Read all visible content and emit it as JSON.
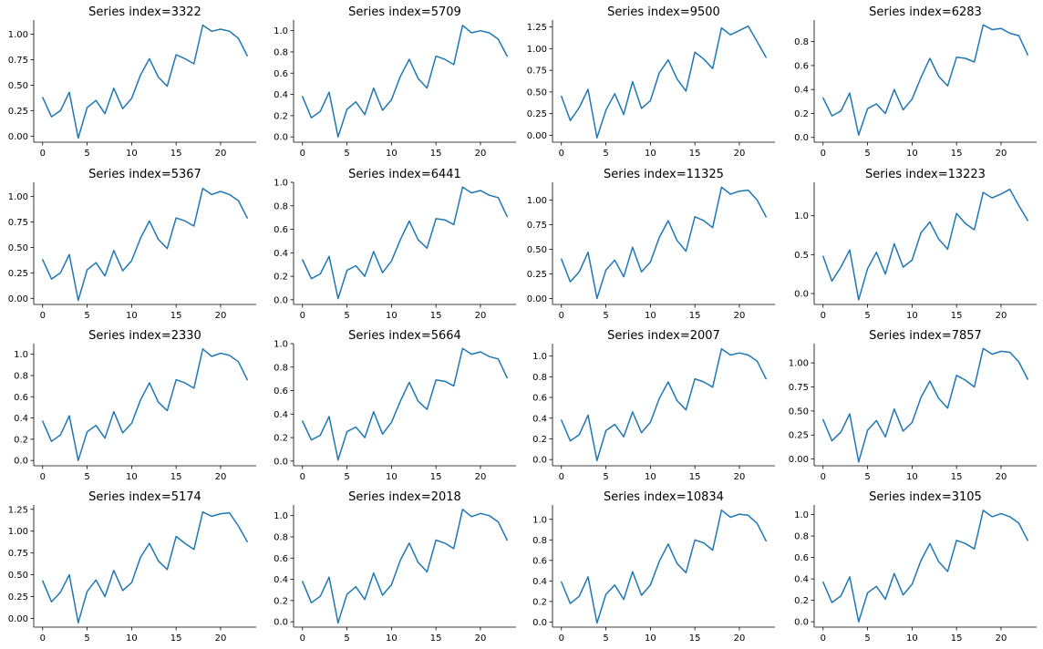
{
  "line_color": "#1f77b4",
  "chart_data": [
    {
      "type": "line",
      "title": "Series index=3322",
      "xlim": [
        -1,
        24
      ],
      "ylim": [
        -0.06,
        1.14
      ],
      "xticks": [
        0,
        5,
        10,
        15,
        20
      ],
      "yticks": [
        0,
        0.25,
        0.5,
        0.75,
        1.0
      ],
      "ytick_labels": [
        "0.00",
        "0.25",
        "0.50",
        "0.75",
        "1.00"
      ],
      "x": [
        0,
        1,
        2,
        3,
        4,
        5,
        6,
        7,
        8,
        9,
        10,
        11,
        12,
        13,
        14,
        15,
        16,
        17,
        18,
        19,
        20,
        21,
        22,
        23
      ],
      "values": [
        0.38,
        0.19,
        0.25,
        0.43,
        -0.02,
        0.28,
        0.35,
        0.22,
        0.47,
        0.27,
        0.37,
        0.6,
        0.76,
        0.58,
        0.49,
        0.8,
        0.76,
        0.71,
        1.09,
        1.03,
        1.05,
        1.03,
        0.96,
        0.79
      ]
    },
    {
      "type": "line",
      "title": "Series index=5709",
      "xlim": [
        -1,
        24
      ],
      "ylim": [
        -0.05,
        1.1
      ],
      "xticks": [
        0,
        5,
        10,
        15,
        20
      ],
      "yticks": [
        0,
        0.2,
        0.4,
        0.6,
        0.8,
        1.0
      ],
      "ytick_labels": [
        "0.0",
        "0.2",
        "0.4",
        "0.6",
        "0.8",
        "1.0"
      ],
      "x": [
        0,
        1,
        2,
        3,
        4,
        5,
        6,
        7,
        8,
        9,
        10,
        11,
        12,
        13,
        14,
        15,
        16,
        17,
        18,
        19,
        20,
        21,
        22,
        23
      ],
      "values": [
        0.38,
        0.18,
        0.24,
        0.42,
        0.0,
        0.26,
        0.33,
        0.21,
        0.46,
        0.25,
        0.35,
        0.57,
        0.73,
        0.55,
        0.46,
        0.76,
        0.73,
        0.68,
        1.05,
        0.98,
        1.0,
        0.98,
        0.92,
        0.76
      ]
    },
    {
      "type": "line",
      "title": "Series index=9500",
      "xlim": [
        -1,
        24
      ],
      "ylim": [
        -0.08,
        1.33
      ],
      "xticks": [
        0,
        5,
        10,
        15,
        20
      ],
      "yticks": [
        0,
        0.25,
        0.5,
        0.75,
        1.0,
        1.25
      ],
      "ytick_labels": [
        "0.00",
        "0.25",
        "0.50",
        "0.75",
        "1.00",
        "1.25"
      ],
      "x": [
        0,
        1,
        2,
        3,
        4,
        5,
        6,
        7,
        8,
        9,
        10,
        11,
        12,
        13,
        14,
        15,
        16,
        17,
        18,
        19,
        20,
        21,
        22,
        23
      ],
      "values": [
        0.45,
        0.17,
        0.32,
        0.53,
        -0.03,
        0.29,
        0.48,
        0.24,
        0.62,
        0.31,
        0.4,
        0.72,
        0.87,
        0.65,
        0.51,
        0.96,
        0.88,
        0.77,
        1.24,
        1.16,
        1.21,
        1.26,
        1.08,
        0.9
      ]
    },
    {
      "type": "line",
      "title": "Series index=6283",
      "xlim": [
        -1,
        24
      ],
      "ylim": [
        -0.04,
        0.98
      ],
      "xticks": [
        0,
        5,
        10,
        15,
        20
      ],
      "yticks": [
        0,
        0.2,
        0.4,
        0.6,
        0.8
      ],
      "ytick_labels": [
        "0.0",
        "0.2",
        "0.4",
        "0.6",
        "0.8"
      ],
      "x": [
        0,
        1,
        2,
        3,
        4,
        5,
        6,
        7,
        8,
        9,
        10,
        11,
        12,
        13,
        14,
        15,
        16,
        17,
        18,
        19,
        20,
        21,
        22,
        23
      ],
      "values": [
        0.33,
        0.18,
        0.22,
        0.37,
        0.02,
        0.24,
        0.28,
        0.2,
        0.4,
        0.23,
        0.32,
        0.5,
        0.66,
        0.51,
        0.43,
        0.67,
        0.66,
        0.63,
        0.94,
        0.9,
        0.91,
        0.87,
        0.85,
        0.69
      ]
    },
    {
      "type": "line",
      "title": "Series index=5367",
      "xlim": [
        -1,
        24
      ],
      "ylim": [
        -0.06,
        1.14
      ],
      "xticks": [
        0,
        5,
        10,
        15,
        20
      ],
      "yticks": [
        0,
        0.25,
        0.5,
        0.75,
        1.0
      ],
      "ytick_labels": [
        "0.00",
        "0.25",
        "0.50",
        "0.75",
        "1.00"
      ],
      "x": [
        0,
        1,
        2,
        3,
        4,
        5,
        6,
        7,
        8,
        9,
        10,
        11,
        12,
        13,
        14,
        15,
        16,
        17,
        18,
        19,
        20,
        21,
        22,
        23
      ],
      "values": [
        0.38,
        0.19,
        0.25,
        0.43,
        -0.02,
        0.28,
        0.35,
        0.22,
        0.47,
        0.27,
        0.37,
        0.59,
        0.76,
        0.58,
        0.49,
        0.79,
        0.76,
        0.71,
        1.08,
        1.02,
        1.05,
        1.02,
        0.96,
        0.79
      ]
    },
    {
      "type": "line",
      "title": "Series index=6441",
      "xlim": [
        -1,
        24
      ],
      "ylim": [
        -0.04,
        1.0
      ],
      "xticks": [
        0,
        5,
        10,
        15,
        20
      ],
      "yticks": [
        0,
        0.2,
        0.4,
        0.6,
        0.8,
        1.0
      ],
      "ytick_labels": [
        "0.0",
        "0.2",
        "0.4",
        "0.6",
        "0.8",
        "1.0"
      ],
      "x": [
        0,
        1,
        2,
        3,
        4,
        5,
        6,
        7,
        8,
        9,
        10,
        11,
        12,
        13,
        14,
        15,
        16,
        17,
        18,
        19,
        20,
        21,
        22,
        23
      ],
      "values": [
        0.34,
        0.18,
        0.22,
        0.37,
        0.01,
        0.25,
        0.29,
        0.2,
        0.41,
        0.23,
        0.33,
        0.51,
        0.67,
        0.51,
        0.44,
        0.69,
        0.68,
        0.64,
        0.96,
        0.91,
        0.93,
        0.89,
        0.87,
        0.71
      ]
    },
    {
      "type": "line",
      "title": "Series index=11325",
      "xlim": [
        -1,
        24
      ],
      "ylim": [
        -0.06,
        1.18
      ],
      "xticks": [
        0,
        5,
        10,
        15,
        20
      ],
      "yticks": [
        0,
        0.25,
        0.5,
        0.75,
        1.0
      ],
      "ytick_labels": [
        "0.00",
        "0.25",
        "0.50",
        "0.75",
        "1.00"
      ],
      "x": [
        0,
        1,
        2,
        3,
        4,
        5,
        6,
        7,
        8,
        9,
        10,
        11,
        12,
        13,
        14,
        15,
        16,
        17,
        18,
        19,
        20,
        21,
        22,
        23
      ],
      "values": [
        0.4,
        0.17,
        0.27,
        0.47,
        0.0,
        0.29,
        0.39,
        0.22,
        0.52,
        0.27,
        0.37,
        0.62,
        0.79,
        0.59,
        0.48,
        0.83,
        0.79,
        0.72,
        1.13,
        1.06,
        1.09,
        1.1,
        1.0,
        0.83
      ]
    },
    {
      "type": "line",
      "title": "Series index=13223",
      "xlim": [
        -1,
        24
      ],
      "ylim": [
        -0.14,
        1.43
      ],
      "xticks": [
        0,
        5,
        10,
        15,
        20
      ],
      "yticks": [
        0,
        0.5,
        1.0
      ],
      "ytick_labels": [
        "0.0",
        "0.5",
        "1.0"
      ],
      "x": [
        0,
        1,
        2,
        3,
        4,
        5,
        6,
        7,
        8,
        9,
        10,
        11,
        12,
        13,
        14,
        15,
        16,
        17,
        18,
        19,
        20,
        21,
        22,
        23
      ],
      "values": [
        0.48,
        0.16,
        0.34,
        0.56,
        -0.08,
        0.32,
        0.53,
        0.25,
        0.64,
        0.34,
        0.43,
        0.78,
        0.92,
        0.7,
        0.57,
        1.03,
        0.9,
        0.82,
        1.3,
        1.23,
        1.28,
        1.34,
        1.13,
        0.94
      ]
    },
    {
      "type": "line",
      "title": "Series index=2330",
      "xlim": [
        -1,
        24
      ],
      "ylim": [
        -0.05,
        1.1
      ],
      "xticks": [
        0,
        5,
        10,
        15,
        20
      ],
      "yticks": [
        0,
        0.2,
        0.4,
        0.6,
        0.8,
        1.0
      ],
      "ytick_labels": [
        "0.0",
        "0.2",
        "0.4",
        "0.6",
        "0.8",
        "1.0"
      ],
      "x": [
        0,
        1,
        2,
        3,
        4,
        5,
        6,
        7,
        8,
        9,
        10,
        11,
        12,
        13,
        14,
        15,
        16,
        17,
        18,
        19,
        20,
        21,
        22,
        23
      ],
      "values": [
        0.37,
        0.18,
        0.24,
        0.42,
        0.0,
        0.27,
        0.33,
        0.21,
        0.46,
        0.26,
        0.35,
        0.57,
        0.73,
        0.55,
        0.47,
        0.76,
        0.73,
        0.68,
        1.05,
        0.98,
        1.01,
        0.99,
        0.93,
        0.76
      ]
    },
    {
      "type": "line",
      "title": "Series index=5664",
      "xlim": [
        -1,
        24
      ],
      "ylim": [
        -0.04,
        1.0
      ],
      "xticks": [
        0,
        5,
        10,
        15,
        20
      ],
      "yticks": [
        0,
        0.2,
        0.4,
        0.6,
        0.8,
        1.0
      ],
      "ytick_labels": [
        "0.0",
        "0.2",
        "0.4",
        "0.6",
        "0.8",
        "1.0"
      ],
      "x": [
        0,
        1,
        2,
        3,
        4,
        5,
        6,
        7,
        8,
        9,
        10,
        11,
        12,
        13,
        14,
        15,
        16,
        17,
        18,
        19,
        20,
        21,
        22,
        23
      ],
      "values": [
        0.34,
        0.18,
        0.22,
        0.38,
        0.01,
        0.25,
        0.29,
        0.2,
        0.42,
        0.23,
        0.33,
        0.51,
        0.67,
        0.51,
        0.44,
        0.69,
        0.68,
        0.64,
        0.96,
        0.91,
        0.93,
        0.89,
        0.87,
        0.71
      ]
    },
    {
      "type": "line",
      "title": "Series index=2007",
      "xlim": [
        -1,
        24
      ],
      "ylim": [
        -0.06,
        1.12
      ],
      "xticks": [
        0,
        5,
        10,
        15,
        20
      ],
      "yticks": [
        0,
        0.2,
        0.4,
        0.6,
        0.8,
        1.0
      ],
      "ytick_labels": [
        "0.0",
        "0.2",
        "0.4",
        "0.6",
        "0.8",
        "1.0"
      ],
      "x": [
        0,
        1,
        2,
        3,
        4,
        5,
        6,
        7,
        8,
        9,
        10,
        11,
        12,
        13,
        14,
        15,
        16,
        17,
        18,
        19,
        20,
        21,
        22,
        23
      ],
      "values": [
        0.38,
        0.18,
        0.24,
        0.43,
        -0.01,
        0.28,
        0.34,
        0.22,
        0.46,
        0.26,
        0.36,
        0.59,
        0.75,
        0.57,
        0.48,
        0.78,
        0.75,
        0.7,
        1.07,
        1.01,
        1.03,
        1.01,
        0.95,
        0.78
      ]
    },
    {
      "type": "line",
      "title": "Series index=7857",
      "xlim": [
        -1,
        24
      ],
      "ylim": [
        -0.07,
        1.2
      ],
      "xticks": [
        0,
        5,
        10,
        15,
        20
      ],
      "yticks": [
        0,
        0.25,
        0.5,
        0.75,
        1.0
      ],
      "ytick_labels": [
        "0.00",
        "0.25",
        "0.50",
        "0.75",
        "1.00"
      ],
      "x": [
        0,
        1,
        2,
        3,
        4,
        5,
        6,
        7,
        8,
        9,
        10,
        11,
        12,
        13,
        14,
        15,
        16,
        17,
        18,
        19,
        20,
        21,
        22,
        23
      ],
      "values": [
        0.41,
        0.19,
        0.28,
        0.47,
        -0.03,
        0.3,
        0.4,
        0.23,
        0.52,
        0.29,
        0.38,
        0.64,
        0.81,
        0.63,
        0.53,
        0.87,
        0.82,
        0.75,
        1.15,
        1.09,
        1.12,
        1.11,
        1.01,
        0.83
      ]
    },
    {
      "type": "line",
      "title": "Series index=5174",
      "xlim": [
        -1,
        24
      ],
      "ylim": [
        -0.1,
        1.3
      ],
      "xticks": [
        0,
        5,
        10,
        15,
        20
      ],
      "yticks": [
        0,
        0.25,
        0.5,
        0.75,
        1.0,
        1.25
      ],
      "ytick_labels": [
        "0.00",
        "0.25",
        "0.50",
        "0.75",
        "1.00",
        "1.25"
      ],
      "x": [
        0,
        1,
        2,
        3,
        4,
        5,
        6,
        7,
        8,
        9,
        10,
        11,
        12,
        13,
        14,
        15,
        16,
        17,
        18,
        19,
        20,
        21,
        22,
        23
      ],
      "values": [
        0.43,
        0.19,
        0.3,
        0.5,
        -0.05,
        0.31,
        0.44,
        0.25,
        0.55,
        0.32,
        0.41,
        0.7,
        0.86,
        0.66,
        0.56,
        0.94,
        0.86,
        0.79,
        1.22,
        1.17,
        1.2,
        1.21,
        1.06,
        0.88
      ]
    },
    {
      "type": "line",
      "title": "Series index=2018",
      "xlim": [
        -1,
        24
      ],
      "ylim": [
        -0.05,
        1.1
      ],
      "xticks": [
        0,
        5,
        10,
        15,
        20
      ],
      "yticks": [
        0,
        0.2,
        0.4,
        0.6,
        0.8,
        1.0
      ],
      "ytick_labels": [
        "0.0",
        "0.2",
        "0.4",
        "0.6",
        "0.8",
        "1.0"
      ],
      "x": [
        0,
        1,
        2,
        3,
        4,
        5,
        6,
        7,
        8,
        9,
        10,
        11,
        12,
        13,
        14,
        15,
        16,
        17,
        18,
        19,
        20,
        21,
        22,
        23
      ],
      "values": [
        0.38,
        0.18,
        0.24,
        0.42,
        -0.01,
        0.26,
        0.33,
        0.21,
        0.46,
        0.25,
        0.35,
        0.58,
        0.74,
        0.56,
        0.47,
        0.77,
        0.74,
        0.69,
        1.06,
        0.99,
        1.02,
        1.0,
        0.94,
        0.77
      ]
    },
    {
      "type": "line",
      "title": "Series index=10834",
      "xlim": [
        -1,
        24
      ],
      "ylim": [
        -0.05,
        1.14
      ],
      "xticks": [
        0,
        5,
        10,
        15,
        20
      ],
      "yticks": [
        0,
        0.2,
        0.4,
        0.6,
        0.8,
        1.0
      ],
      "ytick_labels": [
        "0.0",
        "0.2",
        "0.4",
        "0.6",
        "0.8",
        "1.0"
      ],
      "x": [
        0,
        1,
        2,
        3,
        4,
        5,
        6,
        7,
        8,
        9,
        10,
        11,
        12,
        13,
        14,
        15,
        16,
        17,
        18,
        19,
        20,
        21,
        22,
        23
      ],
      "values": [
        0.39,
        0.18,
        0.25,
        0.44,
        -0.01,
        0.27,
        0.36,
        0.22,
        0.49,
        0.26,
        0.36,
        0.59,
        0.76,
        0.57,
        0.48,
        0.8,
        0.77,
        0.7,
        1.09,
        1.02,
        1.05,
        1.04,
        0.96,
        0.79
      ]
    },
    {
      "type": "line",
      "title": "Series index=3105",
      "xlim": [
        -1,
        24
      ],
      "ylim": [
        -0.05,
        1.09
      ],
      "xticks": [
        0,
        5,
        10,
        15,
        20
      ],
      "yticks": [
        0,
        0.2,
        0.4,
        0.6,
        0.8,
        1.0
      ],
      "ytick_labels": [
        "0.0",
        "0.2",
        "0.4",
        "0.6",
        "0.8",
        "1.0"
      ],
      "x": [
        0,
        1,
        2,
        3,
        4,
        5,
        6,
        7,
        8,
        9,
        10,
        11,
        12,
        13,
        14,
        15,
        16,
        17,
        18,
        19,
        20,
        21,
        22,
        23
      ],
      "values": [
        0.37,
        0.18,
        0.24,
        0.42,
        0.0,
        0.27,
        0.33,
        0.21,
        0.45,
        0.25,
        0.35,
        0.57,
        0.73,
        0.56,
        0.47,
        0.76,
        0.73,
        0.68,
        1.04,
        0.98,
        1.01,
        0.98,
        0.92,
        0.76
      ]
    }
  ]
}
